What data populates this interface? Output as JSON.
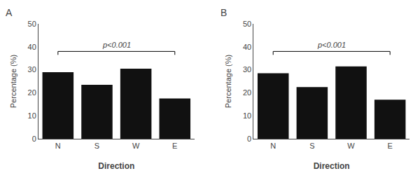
{
  "chart_data": [
    {
      "type": "bar",
      "title": "A",
      "categories": [
        "N",
        "S",
        "W",
        "E"
      ],
      "values": [
        29.0,
        23.5,
        30.5,
        17.5
      ],
      "color": "#111111",
      "xlabel": "Direction",
      "ylabel": "Percentage (%)",
      "ylim": [
        0,
        50
      ],
      "yticks": [
        0,
        10,
        20,
        30,
        40,
        50
      ],
      "grid": false,
      "bracket": {
        "text": "p<0.001",
        "y": 38.0,
        "tick": 1.5
      }
    },
    {
      "type": "bar",
      "title": "B",
      "categories": [
        "N",
        "S",
        "W",
        "E"
      ],
      "values": [
        28.5,
        22.5,
        31.5,
        17.0
      ],
      "color": "#111111",
      "xlabel": "Direction",
      "ylabel": "Percentage (%)",
      "ylim": [
        0,
        50
      ],
      "yticks": [
        0,
        10,
        20,
        30,
        40,
        50
      ],
      "grid": false,
      "bracket": {
        "text": "p<0.001",
        "y": 38.0,
        "tick": 1.5
      }
    }
  ]
}
